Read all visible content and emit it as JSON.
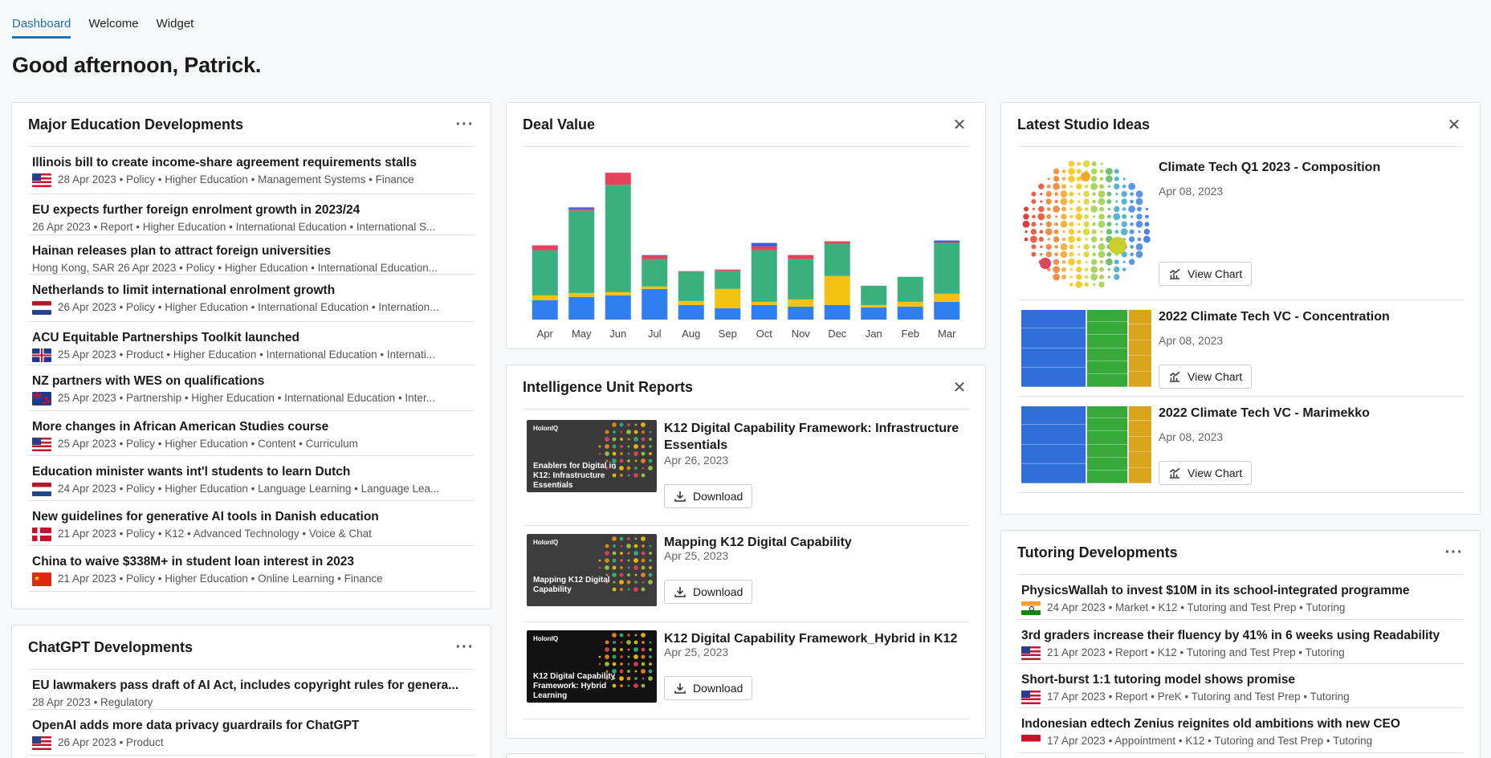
{
  "tabs": [
    {
      "label": "Dashboard",
      "active": true
    },
    {
      "label": "Welcome",
      "active": false
    },
    {
      "label": "Widget",
      "active": false
    }
  ],
  "greeting": "Good afternoon, Patrick.",
  "major_education": {
    "title": "Major Education Developments",
    "items": [
      {
        "title": "Illinois bill to create income-share agreement requirements stalls",
        "flag": "us",
        "meta": "28 Apr 2023 • Policy • Higher Education • Management Systems • Finance"
      },
      {
        "title": "EU expects further foreign enrolment growth in 2023/24",
        "flag": "",
        "meta": "26 Apr 2023 • Report • Higher Education • International Education • International S..."
      },
      {
        "title": "Hainan releases plan to attract foreign universities",
        "flag": "",
        "meta": "Hong Kong, SAR 26 Apr 2023 • Policy • Higher Education • International Education..."
      },
      {
        "title": "Netherlands to limit international enrolment growth",
        "flag": "nl",
        "meta": "26 Apr 2023 • Policy • Higher Education • International Education • Internation..."
      },
      {
        "title": "ACU Equitable Partnerships Toolkit launched",
        "flag": "uk",
        "meta": "25 Apr 2023 • Product • Higher Education • International Education • Internati..."
      },
      {
        "title": "NZ partners with WES on qualifications",
        "flag": "nz",
        "meta": "25 Apr 2023 • Partnership • Higher Education • International Education • Inter..."
      },
      {
        "title": "More changes in African American Studies course",
        "flag": "us",
        "meta": "25 Apr 2023 • Policy • Higher Education • Content • Curriculum"
      },
      {
        "title": "Education minister wants int'l students to learn Dutch",
        "flag": "nl",
        "meta": "24 Apr 2023 • Policy • Higher Education • Language Learning • Language Lea..."
      },
      {
        "title": "New guidelines for generative AI tools in Danish education",
        "flag": "dk",
        "meta": "21 Apr 2023 • Policy • K12 • Advanced Technology • Voice & Chat"
      },
      {
        "title": "China to waive $338M+ in student loan interest in 2023",
        "flag": "cn",
        "meta": "21 Apr 2023 • Policy • Higher Education • Online Learning • Finance"
      }
    ]
  },
  "chatgpt": {
    "title": "ChatGPT Developments",
    "items": [
      {
        "title": "EU lawmakers pass draft of AI Act, includes copyright rules for genera...",
        "flag": "",
        "meta": "28 Apr 2023 • Regulatory"
      },
      {
        "title": "OpenAI adds more data privacy guardrails for ChatGPT",
        "flag": "us",
        "meta": "26 Apr 2023 • Product"
      }
    ]
  },
  "deal_value": {
    "title": "Deal Value",
    "chart_data": {
      "type": "bar",
      "stacked": true,
      "categories": [
        "Apr",
        "May",
        "Jun",
        "Jul",
        "Aug",
        "Sep",
        "Oct",
        "Nov",
        "Dec",
        "Jan",
        "Feb",
        "Mar"
      ],
      "series": [
        {
          "color": "#2f7ff0",
          "values": [
            24,
            28,
            30,
            38,
            18,
            14,
            18,
            16,
            18,
            15,
            16,
            22
          ]
        },
        {
          "color": "#f5c211",
          "values": [
            6,
            5,
            4,
            3,
            5,
            24,
            4,
            9,
            36,
            3,
            6,
            10
          ]
        },
        {
          "color": "#3ab07e",
          "values": [
            56,
            102,
            133,
            34,
            36,
            22,
            64,
            50,
            40,
            24,
            31,
            63
          ]
        },
        {
          "color": "#e2445c",
          "values": [
            6,
            2,
            15,
            4,
            1,
            2,
            5,
            5,
            3,
            0,
            0,
            1
          ]
        },
        {
          "color": "#3b5bdb",
          "values": [
            0,
            2,
            0,
            1,
            0,
            0,
            4,
            0,
            0,
            0,
            0,
            2
          ]
        }
      ],
      "ylim": [
        0,
        200
      ],
      "grid": false
    }
  },
  "reports": {
    "title": "Intelligence Unit Reports",
    "download_label": "Download",
    "items": [
      {
        "title": "K12 Digital Capability Framework: Infrastructure Essentials",
        "date": "Apr 26, 2023",
        "thumb_title": "Enablers for Digital in K12: Infrastructure Essentials",
        "thumb_bg": "#3a3a3a"
      },
      {
        "title": "Mapping K12 Digital Capability",
        "date": "Apr 25, 2023",
        "thumb_title": "Mapping K12 Digital Capability",
        "thumb_bg": "#3c3c3c"
      },
      {
        "title": "K12 Digital Capability Framework_Hybrid in K12",
        "date": "Apr 25, 2023",
        "thumb_title": "K12 Digital Capability Framework: Hybrid Learning",
        "thumb_bg": "#121212"
      }
    ],
    "logo": "HolonIQ"
  },
  "studio": {
    "title": "Latest Studio Ideas",
    "view_label": "View Chart",
    "items": [
      {
        "title": "Climate Tech Q1 2023 - Composition",
        "date": "Apr 08, 2023",
        "thumb": "bubbles"
      },
      {
        "title": "2022 Climate Tech VC - Concentration",
        "date": "Apr 08, 2023",
        "thumb": "marimekko"
      },
      {
        "title": "2022 Climate Tech VC - Marimekko",
        "date": "Apr 08, 2023",
        "thumb": "marimekko"
      }
    ]
  },
  "tutoring": {
    "title": "Tutoring Developments",
    "items": [
      {
        "title": "PhysicsWallah to invest $10M in its school-integrated programme",
        "flag": "in",
        "meta": "24 Apr 2023 • Market • K12 • Tutoring and Test Prep • Tutoring"
      },
      {
        "title": "3rd graders increase their fluency by 41% in 6 weeks using Readability",
        "flag": "us",
        "meta": "21 Apr 2023 • Report • K12 • Tutoring and Test Prep • Tutoring"
      },
      {
        "title": "Short-burst 1:1 tutoring model shows promise",
        "flag": "us",
        "meta": "17 Apr 2023 • Report • PreK • Tutoring and Test Prep • Tutoring"
      },
      {
        "title": "Indonesian edtech Zenius reignites old ambitions with new CEO",
        "flag": "id",
        "meta": "17 Apr 2023 • Appointment • K12 • Tutoring and Test Prep • Tutoring"
      }
    ]
  }
}
